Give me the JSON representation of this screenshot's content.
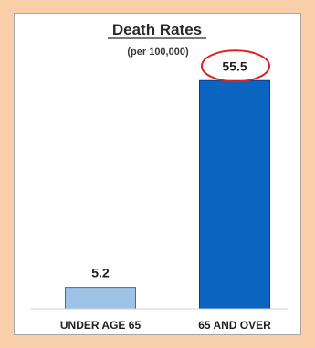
{
  "chart_data": {
    "type": "bar",
    "title": "Death Rates",
    "subtitle": "(per 100,000)",
    "categories": [
      "UNDER AGE 65",
      "65 AND OVER"
    ],
    "values": [
      5.2,
      55.5
    ],
    "value_labels": [
      "5.2",
      "55.5"
    ],
    "colors": [
      "#9dc3e6",
      "#0a64c0"
    ],
    "highlight": {
      "category": "65 AND OVER",
      "color": "#e02020",
      "shape": "ellipse"
    },
    "xlabel": "",
    "ylabel": "",
    "ylim": [
      0,
      60
    ],
    "grid": false,
    "legend": "none"
  }
}
